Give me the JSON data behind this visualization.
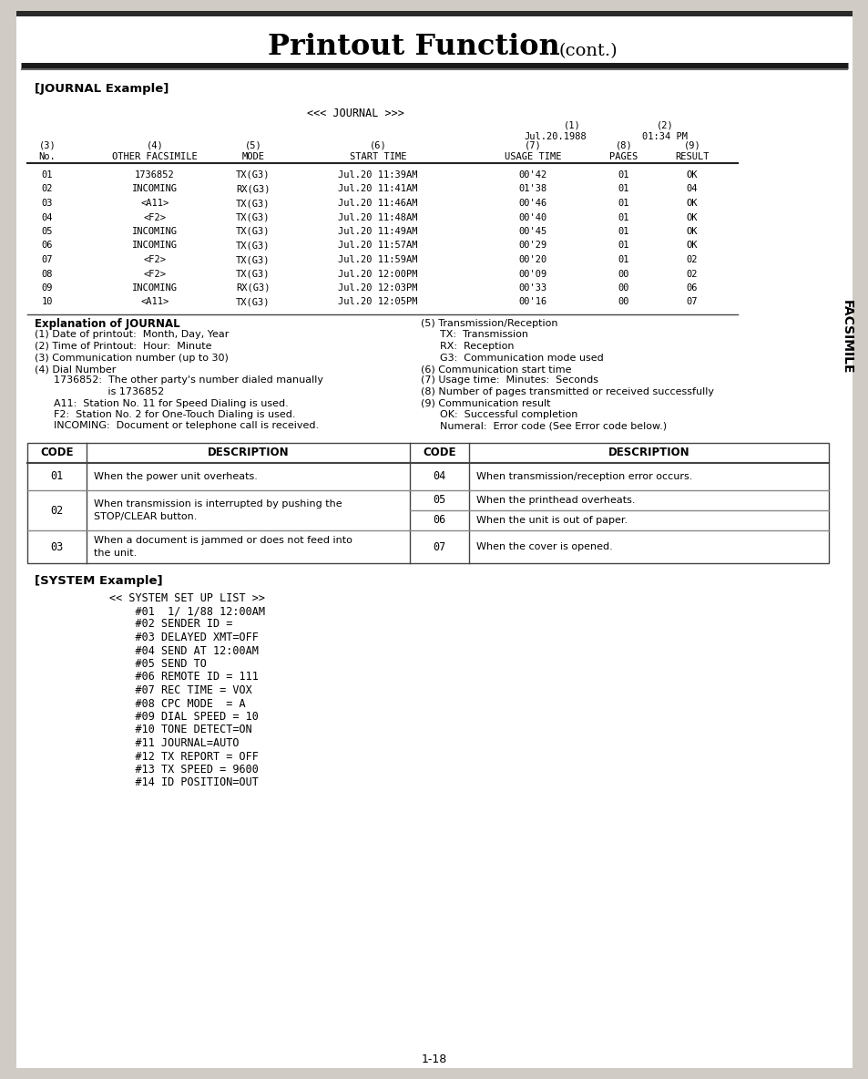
{
  "title_bold": "Printout Function",
  "title_cont": "(cont.)",
  "bg_color": "#d0ccc5",
  "page_bg": "#ffffff",
  "journal_header": "<<< JOURNAL >>>",
  "journal_label": "[JOURNAL Example]",
  "system_label": "[SYSTEM Example]",
  "col_date": "Jul.20.1988",
  "col_time": "01:34 PM",
  "col_nums": [
    "(3)",
    "(4)",
    "(5)",
    "(6)",
    "(7)",
    "(8)",
    "(9)"
  ],
  "col_names": [
    "No.",
    "OTHER FACSIMILE",
    "MODE",
    "START TIME",
    "USAGE TIME",
    "PAGES",
    "RESULT"
  ],
  "journal_rows": [
    [
      "01",
      "1736852",
      "TX(G3)",
      "Jul.20 11:39AM",
      "00'42",
      "01",
      "OK"
    ],
    [
      "02",
      "INCOMING",
      "RX(G3)",
      "Jul.20 11:41AM",
      "01'38",
      "01",
      "04"
    ],
    [
      "03",
      "<A11>",
      "TX(G3)",
      "Jul.20 11:46AM",
      "00'46",
      "01",
      "OK"
    ],
    [
      "04",
      "<F2>",
      "TX(G3)",
      "Jul.20 11:48AM",
      "00'40",
      "01",
      "OK"
    ],
    [
      "05",
      "INCOMING",
      "TX(G3)",
      "Jul.20 11:49AM",
      "00'45",
      "01",
      "OK"
    ],
    [
      "06",
      "INCOMING",
      "TX(G3)",
      "Jul.20 11:57AM",
      "00'29",
      "01",
      "OK"
    ],
    [
      "07",
      "<F2>",
      "TX(G3)",
      "Jul.20 11:59AM",
      "00'20",
      "01",
      "02"
    ],
    [
      "08",
      "<F2>",
      "TX(G3)",
      "Jul.20 12:00PM",
      "00'09",
      "00",
      "02"
    ],
    [
      "09",
      "INCOMING",
      "RX(G3)",
      "Jul.20 12:03PM",
      "00'33",
      "00",
      "06"
    ],
    [
      "10",
      "<A11>",
      "TX(G3)",
      "Jul.20 12:05PM",
      "00'16",
      "00",
      "07"
    ]
  ],
  "exp_left": [
    [
      "bold",
      "Explanation of JOURNAL"
    ],
    [
      "normal",
      "(1) Date of printout:  Month, Day, Year"
    ],
    [
      "normal",
      "(2) Time of Printout:  Hour:  Minute"
    ],
    [
      "normal",
      "(3) Communication number (up to 30)"
    ],
    [
      "normal",
      "(4) Dial Number"
    ],
    [
      "normal",
      "      1736852:  The other party's number dialed manually"
    ],
    [
      "normal",
      "                       is 1736852"
    ],
    [
      "normal",
      "      A11:  Station No. 11 for Speed Dialing is used."
    ],
    [
      "normal",
      "      F2:  Station No. 2 for One-Touch Dialing is used."
    ],
    [
      "normal",
      "      INCOMING:  Document or telephone call is received."
    ]
  ],
  "exp_right": [
    "(5) Transmission/Reception",
    "      TX:  Transmission",
    "      RX:  Reception",
    "      G3:  Communication mode used",
    "(6) Communication start time",
    "(7) Usage time:  Minutes:  Seconds",
    "(8) Number of pages transmitted or received successfully",
    "(9) Communication result",
    "      OK:  Successful completion",
    "      Numeral:  Error code (See Error code below.)"
  ],
  "system_lines": [
    "<< SYSTEM SET UP LIST >>",
    "    #01  1/ 1/88 12:00AM",
    "    #02 SENDER ID =",
    "    #03 DELAYED XMT=OFF",
    "    #04 SEND AT 12:00AM",
    "    #05 SEND TO",
    "    #06 REMOTE ID = 111",
    "    #07 REC TIME = VOX",
    "    #08 CPC MODE  = A",
    "    #09 DIAL SPEED = 10",
    "    #10 TONE DETECT=ON",
    "    #11 JOURNAL=AUTO",
    "    #12 TX REPORT = OFF",
    "    #13 TX SPEED = 9600",
    "    #14 ID POSITION=OUT"
  ],
  "page_number": "1-18",
  "facsimile_text": "FACSIMILE"
}
